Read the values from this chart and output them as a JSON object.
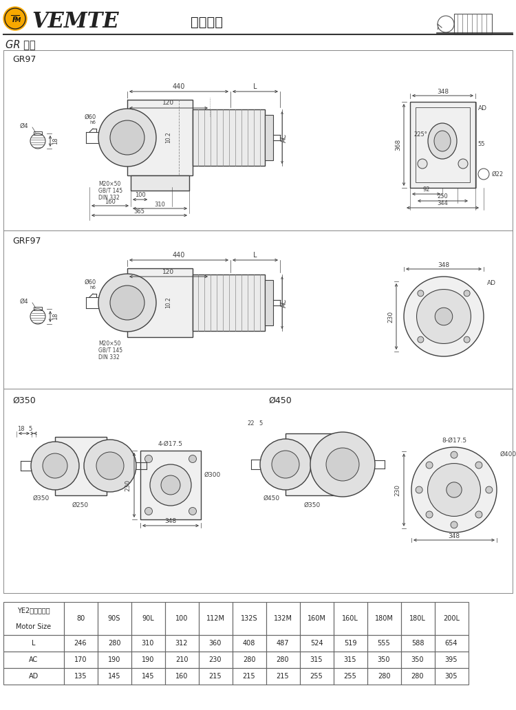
{
  "title": "减速电机",
  "brand": "VEMTE",
  "series": "GR 系列",
  "bg_color": "#ffffff",
  "lc": "#404040",
  "dc": "#404040",
  "table": {
    "header_row1": "YE2电机机座号",
    "header_row2": "Motor Size",
    "columns": [
      "80",
      "90S",
      "90L",
      "100",
      "112M",
      "132S",
      "132M",
      "160M",
      "160L",
      "180M",
      "180L",
      "200L"
    ],
    "rows": {
      "L": [
        246,
        280,
        310,
        312,
        360,
        408,
        487,
        524,
        519,
        555,
        588,
        654
      ],
      "AC": [
        170,
        190,
        190,
        210,
        230,
        280,
        280,
        315,
        315,
        350,
        350,
        395
      ],
      "AD": [
        135,
        145,
        145,
        160,
        215,
        215,
        215,
        255,
        255,
        280,
        280,
        305
      ]
    }
  }
}
